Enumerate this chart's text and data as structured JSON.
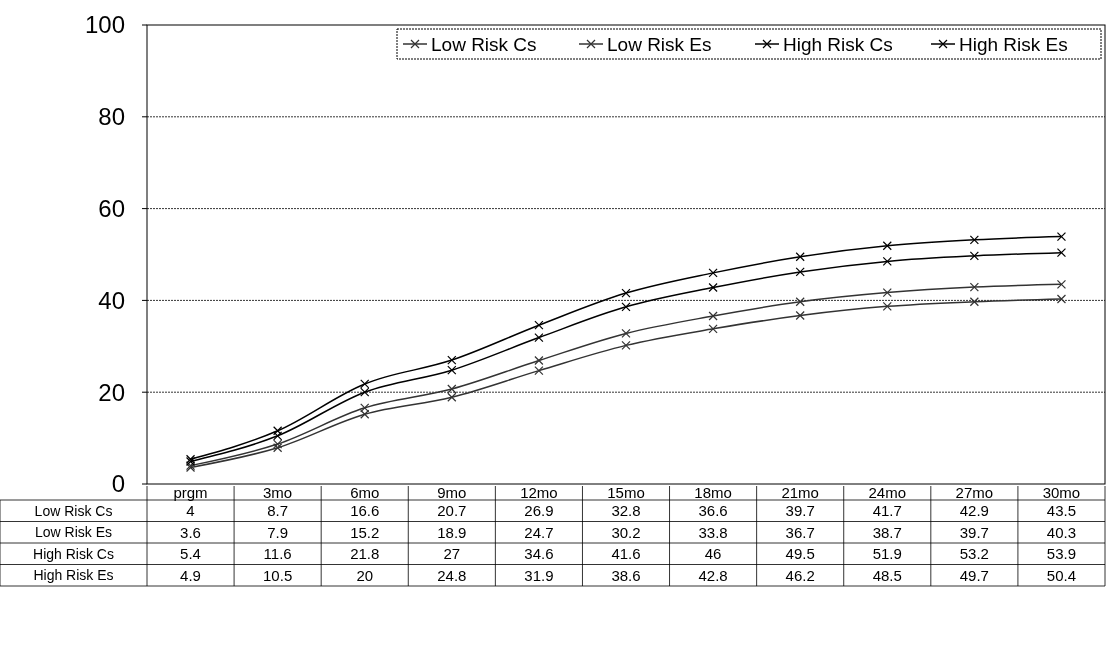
{
  "chart_data": {
    "type": "line",
    "categories": [
      "prgm",
      "3mo",
      "6mo",
      "9mo",
      "12mo",
      "15mo",
      "18mo",
      "21mo",
      "24mo",
      "27mo",
      "30mo"
    ],
    "series": [
      {
        "name": "Low Risk Cs",
        "color": "#333333",
        "values": [
          4,
          8.7,
          16.6,
          20.7,
          26.9,
          32.8,
          36.6,
          39.7,
          41.7,
          42.9,
          43.5
        ]
      },
      {
        "name": "Low Risk Es",
        "color": "#333333",
        "values": [
          3.6,
          7.9,
          15.2,
          18.9,
          24.7,
          30.2,
          33.8,
          36.7,
          38.7,
          39.7,
          40.3
        ]
      },
      {
        "name": "High Risk Cs",
        "color": "#000000",
        "values": [
          5.4,
          11.6,
          21.8,
          27,
          34.6,
          41.6,
          46,
          49.5,
          51.9,
          53.2,
          53.9
        ]
      },
      {
        "name": "High Risk Es",
        "color": "#000000",
        "values": [
          4.9,
          10.5,
          20,
          24.8,
          31.9,
          38.6,
          42.8,
          46.2,
          48.5,
          49.7,
          50.4
        ]
      }
    ],
    "ylim": [
      0,
      100
    ],
    "yticks": [
      0,
      20,
      40,
      60,
      80,
      100
    ],
    "grid": "y",
    "legend": "top right",
    "marker": "cross",
    "line_style": "solid",
    "data_labels": true
  }
}
